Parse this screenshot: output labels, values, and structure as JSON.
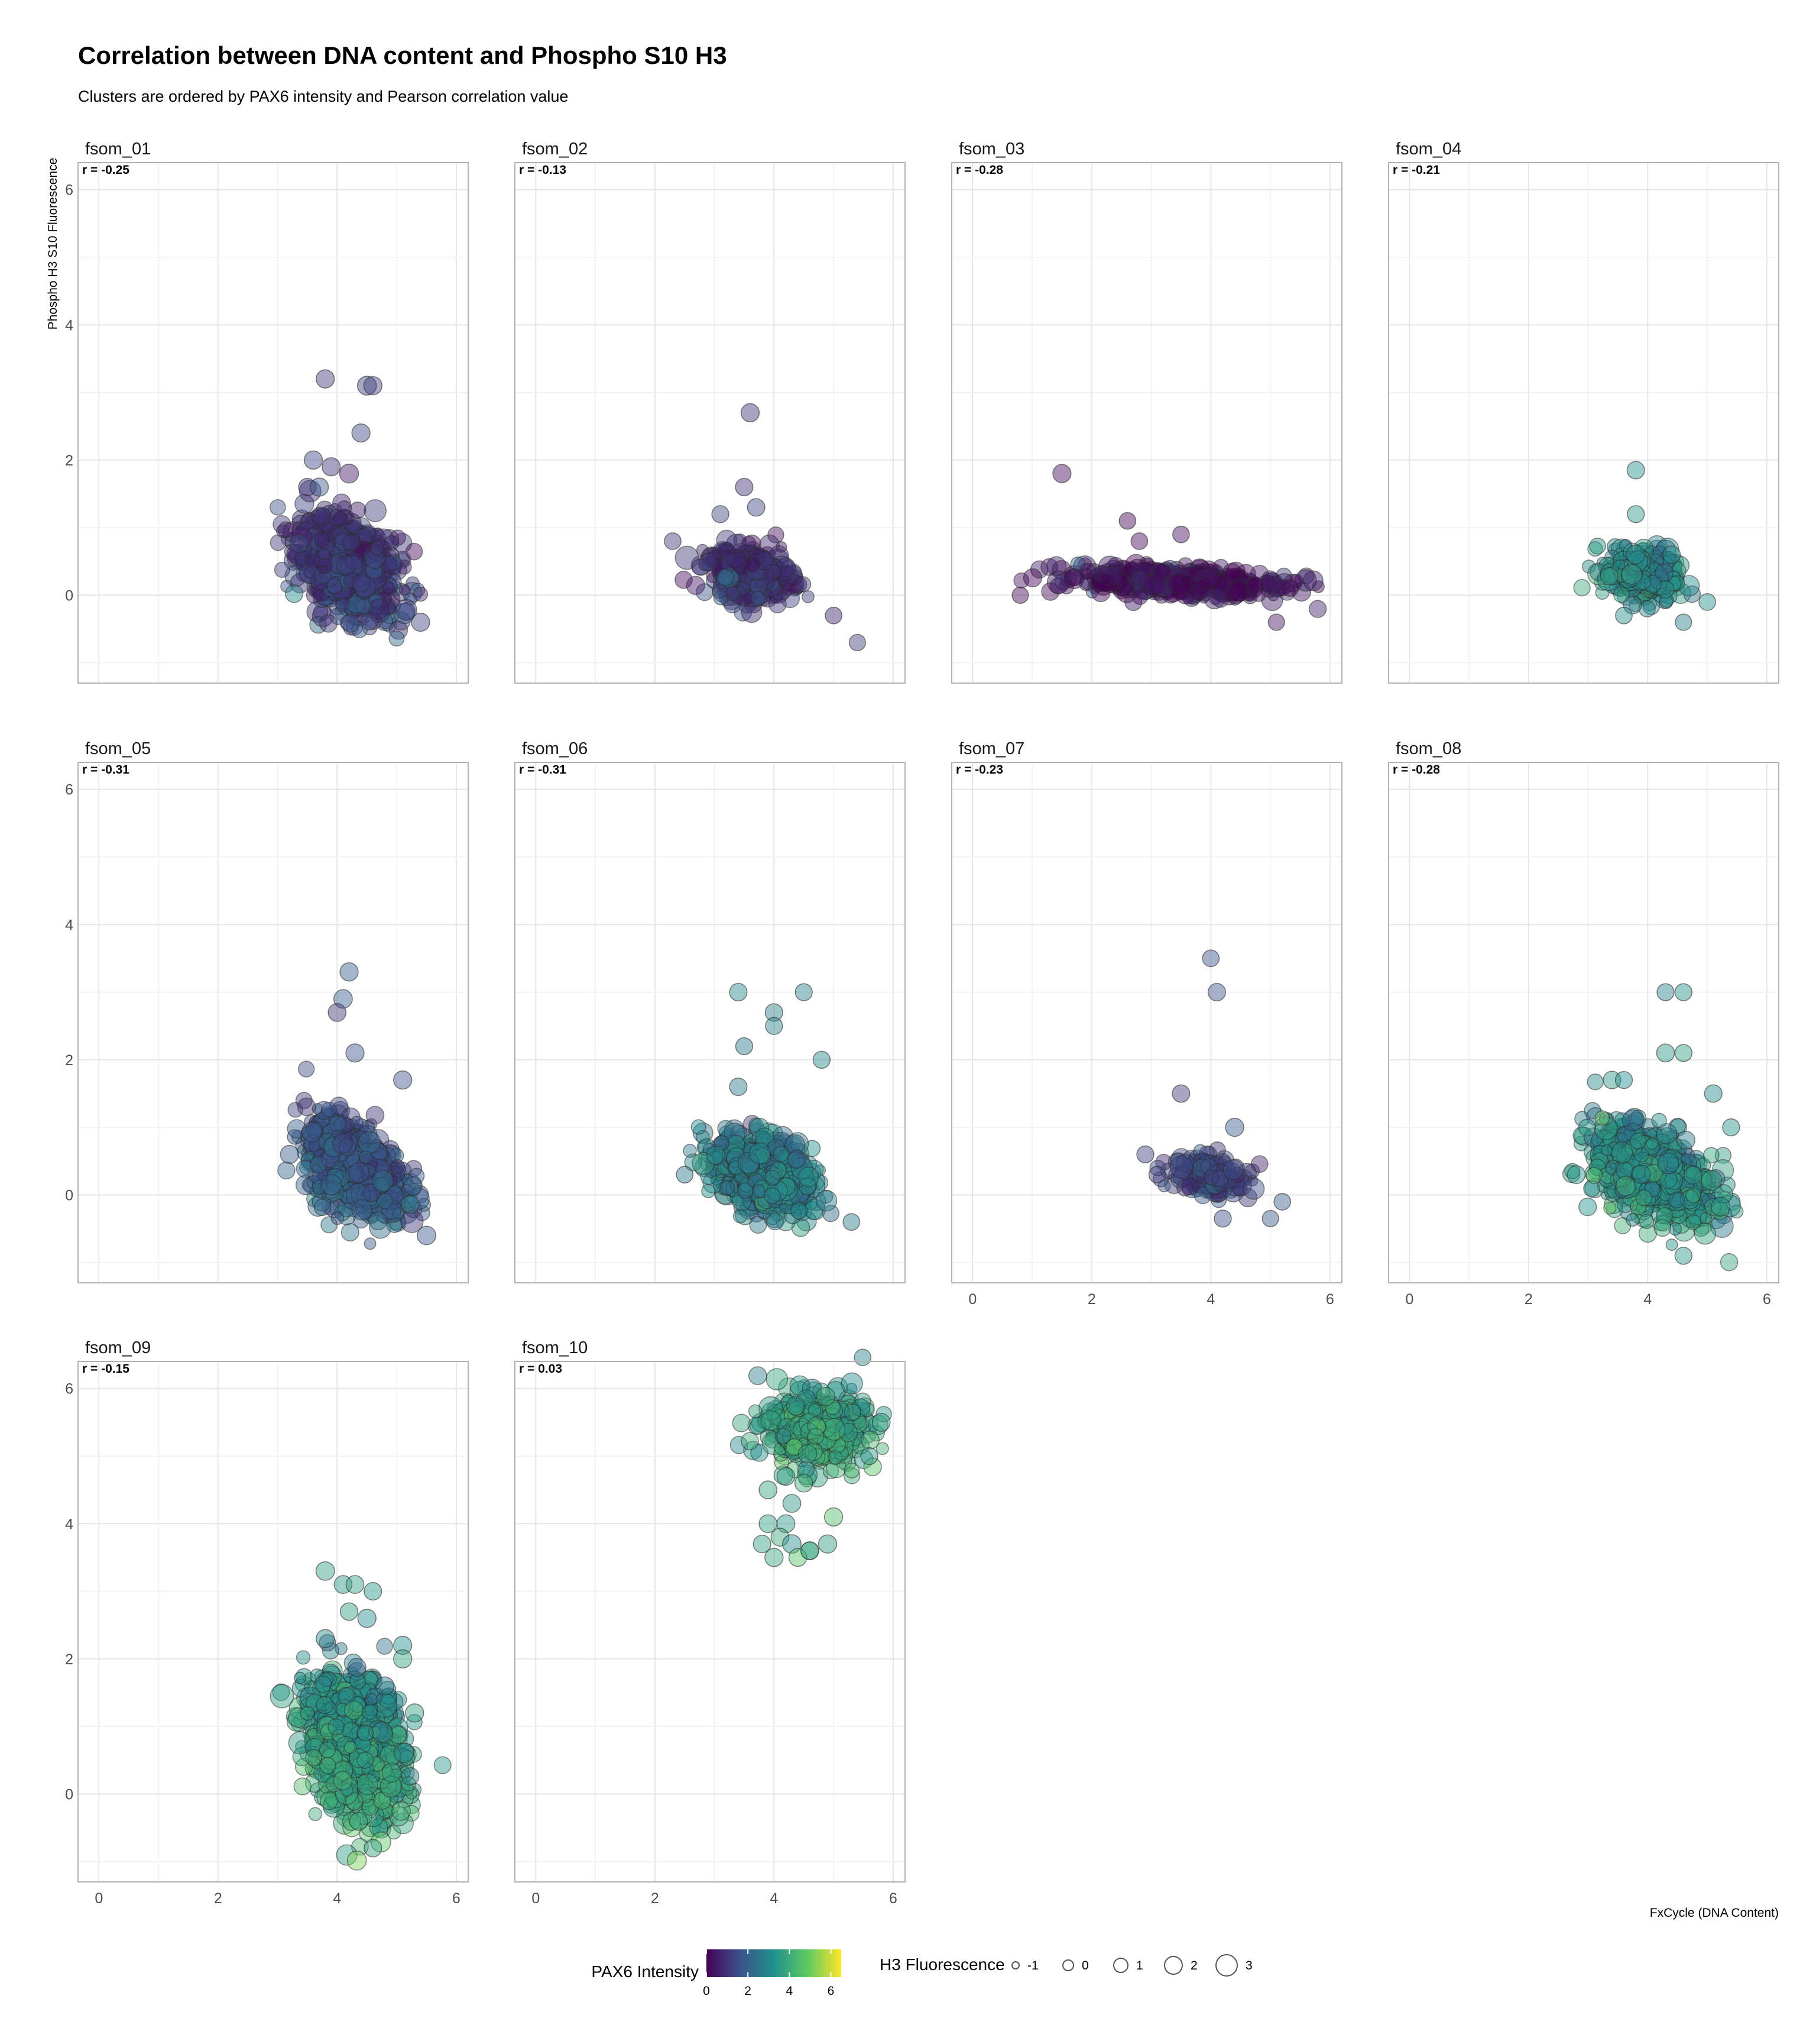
{
  "title": "Correlation between DNA content and Phospho S10 H3",
  "subtitle": "Clusters are ordered by PAX6 intensity and Pearson correlation value",
  "chart_data": {
    "type": "scatter",
    "title": "Correlation between DNA content and Phospho S10 H3",
    "subtitle": "Clusters are ordered by PAX6 intensity and Pearson correlation value",
    "xlabel": "FxCycle (DNA Content)",
    "ylabel": "Phospho H3 S10 Fluorescence",
    "xlim": [
      -0.35,
      6.2
    ],
    "ylim": [
      -1.3,
      6.4
    ],
    "x_ticks": [
      "0",
      "2",
      "4",
      "6"
    ],
    "y_ticks": [
      "0",
      "2",
      "4",
      "6"
    ],
    "grid": true,
    "legend_position": "bottom",
    "color_legend": {
      "title": "PAX6 Intensity",
      "ticks": [
        "0",
        "2",
        "4",
        "6"
      ],
      "range": [
        0,
        6.5
      ],
      "colors": [
        "#440154",
        "#3b528b",
        "#21918c",
        "#5ec962",
        "#fde725"
      ]
    },
    "size_legend": {
      "title": "H3 Fluorescence",
      "labels": [
        "-1",
        "0",
        "1",
        "2",
        "3"
      ]
    },
    "panels": [
      {
        "name": "fsom_01",
        "r_label": "r = -0.25",
        "cluster": {
          "cx": 4.2,
          "cy": 0.4,
          "rx": 0.8,
          "ry": 0.6,
          "pax6": 1.2,
          "n": 650,
          "tilt": -0.3
        },
        "outliers": [
          [
            3.8,
            3.2,
            1.0
          ],
          [
            4.5,
            3.1,
            1.2
          ],
          [
            4.6,
            3.1,
            1.0
          ],
          [
            4.4,
            2.4,
            1.0
          ],
          [
            3.6,
            2.0,
            1.0
          ],
          [
            3.9,
            1.9,
            1.0
          ],
          [
            3.5,
            1.6,
            0.8
          ],
          [
            3.7,
            1.6,
            1.0
          ],
          [
            4.2,
            1.8,
            1.2
          ],
          [
            5.4,
            -0.4,
            1.0
          ]
        ]
      },
      {
        "name": "fsom_02",
        "r_label": "r = -0.13",
        "cluster": {
          "cx": 3.6,
          "cy": 0.3,
          "rx": 0.65,
          "ry": 0.35,
          "pax6": 1.0,
          "n": 380,
          "tilt": -0.1
        },
        "outliers": [
          [
            3.6,
            2.7,
            1.0
          ],
          [
            3.5,
            1.6,
            0.8
          ],
          [
            2.3,
            0.8,
            0.6
          ],
          [
            5.0,
            -0.3,
            0.6
          ],
          [
            5.4,
            -0.7,
            0.5
          ],
          [
            3.7,
            1.3,
            0.8
          ],
          [
            3.1,
            1.2,
            0.7
          ]
        ]
      },
      {
        "name": "fsom_03",
        "r_label": "r = -0.28",
        "cluster": {
          "cx": 3.4,
          "cy": 0.2,
          "rx": 1.7,
          "ry": 0.17,
          "pax6": 0.3,
          "n": 420,
          "tilt": -0.05
        },
        "outliers": [
          [
            1.5,
            1.8,
            1.0
          ],
          [
            2.6,
            1.1,
            0.6
          ],
          [
            2.8,
            0.8,
            0.6
          ],
          [
            3.5,
            0.9,
            0.6
          ],
          [
            5.1,
            -0.4,
            0.5
          ],
          [
            2.7,
            -0.1,
            0.7
          ],
          [
            0.8,
            0.0,
            0.5
          ]
        ]
      },
      {
        "name": "fsom_04",
        "r_label": "r = -0.21",
        "cluster": {
          "cx": 3.9,
          "cy": 0.3,
          "rx": 0.55,
          "ry": 0.35,
          "pax6": 3.2,
          "n": 300,
          "tilt": -0.1
        },
        "outliers": [
          [
            3.8,
            1.85,
            0.8
          ],
          [
            3.8,
            1.2,
            0.7
          ],
          [
            4.6,
            -0.4,
            0.5
          ],
          [
            5.0,
            -0.1,
            0.6
          ],
          [
            3.6,
            -0.3,
            0.6
          ],
          [
            4.4,
            0.6,
            0.8
          ]
        ]
      },
      {
        "name": "fsom_05",
        "r_label": "r = -0.31",
        "cluster": {
          "cx": 4.3,
          "cy": 0.4,
          "rx": 0.75,
          "ry": 0.6,
          "pax6": 1.8,
          "n": 600,
          "tilt": -0.35
        },
        "outliers": [
          [
            4.2,
            3.3,
            1.0
          ],
          [
            4.1,
            2.9,
            1.1
          ],
          [
            4.0,
            2.7,
            0.9
          ],
          [
            4.3,
            2.1,
            1.0
          ],
          [
            5.1,
            1.7,
            1.0
          ],
          [
            3.2,
            0.6,
            1.0
          ],
          [
            5.5,
            -0.6,
            1.1
          ]
        ]
      },
      {
        "name": "fsom_06",
        "r_label": "r = -0.31",
        "cluster": {
          "cx": 3.8,
          "cy": 0.3,
          "rx": 0.75,
          "ry": 0.5,
          "pax6": 2.8,
          "n": 620,
          "tilt": -0.25
        },
        "outliers": [
          [
            3.4,
            3.0,
            0.8
          ],
          [
            4.5,
            3.0,
            0.7
          ],
          [
            4.0,
            2.7,
            0.8
          ],
          [
            3.5,
            2.2,
            0.7
          ],
          [
            4.0,
            2.5,
            0.7
          ],
          [
            4.8,
            2.0,
            0.7
          ],
          [
            3.4,
            1.6,
            0.8
          ],
          [
            5.3,
            -0.4,
            0.6
          ],
          [
            2.5,
            0.3,
            0.6
          ]
        ]
      },
      {
        "name": "fsom_07",
        "r_label": "r = -0.23",
        "cluster": {
          "cx": 4.0,
          "cy": 0.3,
          "rx": 0.6,
          "ry": 0.25,
          "pax6": 1.5,
          "n": 170,
          "tilt": -0.1
        },
        "outliers": [
          [
            4.0,
            3.5,
            0.6
          ],
          [
            4.1,
            3.0,
            0.8
          ],
          [
            3.5,
            1.5,
            0.8
          ],
          [
            4.4,
            1.0,
            1.0
          ],
          [
            5.2,
            -0.1,
            0.6
          ],
          [
            5.0,
            -0.35,
            0.5
          ],
          [
            4.2,
            -0.35,
            0.7
          ],
          [
            3.1,
            0.3,
            0.6
          ],
          [
            2.9,
            0.6,
            0.7
          ]
        ]
      },
      {
        "name": "fsom_08",
        "r_label": "r = -0.28",
        "cluster": {
          "cx": 4.1,
          "cy": 0.3,
          "rx": 0.9,
          "ry": 0.55,
          "pax6": 3.3,
          "n": 750,
          "tilt": -0.3
        },
        "outliers": [
          [
            4.3,
            3.0,
            0.7
          ],
          [
            4.6,
            3.0,
            0.7
          ],
          [
            4.3,
            2.1,
            0.9
          ],
          [
            4.6,
            2.1,
            0.7
          ],
          [
            3.4,
            1.7,
            0.8
          ],
          [
            3.6,
            1.7,
            0.7
          ],
          [
            5.1,
            1.5,
            0.8
          ],
          [
            5.4,
            1.0,
            0.7
          ],
          [
            2.8,
            0.3,
            0.9
          ],
          [
            4.6,
            -0.9,
            0.7
          ]
        ]
      },
      {
        "name": "fsom_09",
        "r_label": "r = -0.15",
        "cluster": {
          "cx": 4.3,
          "cy": 0.7,
          "rx": 0.75,
          "ry": 0.9,
          "pax6": 3.6,
          "n": 800,
          "tilt": -0.3
        },
        "outliers": [
          [
            3.8,
            3.3,
            1.1
          ],
          [
            4.1,
            3.1,
            0.9
          ],
          [
            4.3,
            3.1,
            0.9
          ],
          [
            4.6,
            3.0,
            0.8
          ],
          [
            4.2,
            2.7,
            0.8
          ],
          [
            4.5,
            2.6,
            1.0
          ],
          [
            3.8,
            2.3,
            1.0
          ],
          [
            5.1,
            2.2,
            1.0
          ],
          [
            5.1,
            2.0,
            1.0
          ],
          [
            5.3,
            1.2,
            1.0
          ],
          [
            4.8,
            1.6,
            1.0
          ],
          [
            4.6,
            -0.8,
            0.8
          ]
        ]
      },
      {
        "name": "fsom_10",
        "r_label": "r = 0.03",
        "cluster": {
          "cx": 4.7,
          "cy": 5.4,
          "rx": 0.75,
          "ry": 0.45,
          "pax6": 3.8,
          "n": 480,
          "tilt": 0.0
        },
        "outliers": [
          [
            3.9,
            4.5,
            0.9
          ],
          [
            4.2,
            4.7,
            0.9
          ],
          [
            4.5,
            4.6,
            0.9
          ],
          [
            4.3,
            4.3,
            0.9
          ],
          [
            3.9,
            4.0,
            0.9
          ],
          [
            4.2,
            4.0,
            0.9
          ],
          [
            4.1,
            3.8,
            0.9
          ],
          [
            4.3,
            3.7,
            1.1
          ],
          [
            4.6,
            3.6,
            0.8
          ],
          [
            5.0,
            4.1,
            1.0
          ],
          [
            3.8,
            3.7,
            0.8
          ],
          [
            4.0,
            3.5,
            1.0
          ],
          [
            4.4,
            3.5,
            0.9
          ],
          [
            4.6,
            3.6,
            0.9
          ],
          [
            4.9,
            3.7,
            1.0
          ],
          [
            5.8,
            5.5,
            0.9
          ],
          [
            5.6,
            5.0,
            0.7
          ]
        ]
      }
    ]
  }
}
